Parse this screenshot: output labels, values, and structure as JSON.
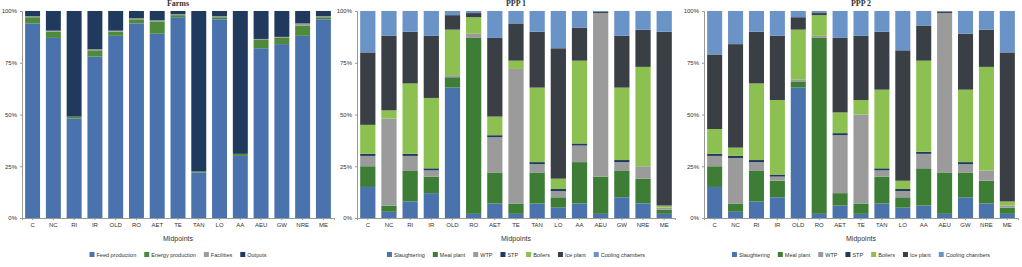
{
  "chart_data": [
    {
      "type": "bar",
      "title": "Farms",
      "x_label": "Midpoints",
      "stacked": true,
      "categories": [
        "C",
        "NC",
        "RI",
        "IR",
        "OLD",
        "RO",
        "AET",
        "TE",
        "TAN",
        "LO",
        "AA",
        "AEU",
        "GW",
        "NRE",
        "ME"
      ],
      "ylim": [
        0,
        100
      ],
      "yticks": [
        {
          "value": 0,
          "label": "0%"
        },
        {
          "value": 25,
          "label": "25%"
        },
        {
          "value": 50,
          "label": "50%"
        },
        {
          "value": 75,
          "label": "75%"
        },
        {
          "value": 100,
          "label": "100%"
        }
      ],
      "series": [
        {
          "name": "Feed production",
          "color": "#4a72ad",
          "values": [
            94,
            87,
            48,
            78,
            88,
            94,
            89,
            97,
            22,
            96,
            30,
            82,
            84,
            88,
            96
          ]
        },
        {
          "name": "Energy production",
          "color": "#4f8a3c",
          "values": [
            3,
            3,
            1,
            3,
            2,
            2,
            6,
            1,
            0.5,
            1,
            1,
            4,
            3,
            5,
            1
          ]
        },
        {
          "name": "Facilities",
          "color": "#9b9b9b",
          "values": [
            0.5,
            0.5,
            0,
            0.5,
            0.5,
            0.5,
            0.5,
            0.5,
            0,
            0.5,
            0,
            0.5,
            0.5,
            1,
            0.5
          ]
        },
        {
          "name": "Outputs",
          "color": "#1f3a5c",
          "values": [
            2.5,
            9.5,
            51,
            18.5,
            9.5,
            3.5,
            4.5,
            1.5,
            77.5,
            2.5,
            69,
            13.5,
            12.5,
            6,
            2.5
          ]
        }
      ]
    },
    {
      "type": "bar",
      "title": "PPP 1",
      "x_label": "Midpoints",
      "stacked": true,
      "categories": [
        "C",
        "NC",
        "RI",
        "IR",
        "OLD",
        "RO",
        "AET",
        "TE",
        "TAN",
        "LO",
        "AA",
        "AEU",
        "GW",
        "NRE",
        "ME"
      ],
      "ylim": [
        0,
        100
      ],
      "yticks": [
        {
          "value": 0,
          "label": "0%"
        },
        {
          "value": 25,
          "label": "25%"
        },
        {
          "value": 50,
          "label": "50%"
        },
        {
          "value": 75,
          "label": "75%"
        },
        {
          "value": 100,
          "label": "100%"
        }
      ],
      "series": [
        {
          "name": "Slaughtering",
          "color": "#4a72ad",
          "values": [
            15,
            3,
            8,
            12,
            63,
            2,
            7,
            2,
            7,
            5,
            7,
            2,
            10,
            7,
            2
          ]
        },
        {
          "name": "Meal plant",
          "color": "#3e7d36",
          "values": [
            10,
            3,
            15,
            8,
            5,
            85,
            15,
            5,
            15,
            5,
            20,
            18,
            13,
            12,
            2
          ]
        },
        {
          "name": "WTP",
          "color": "#9b9b9b",
          "values": [
            5,
            42,
            7,
            3,
            1,
            2,
            17,
            65,
            4,
            3,
            8,
            79,
            4,
            6,
            1
          ]
        },
        {
          "name": "STP",
          "color": "#1f3a5c",
          "values": [
            1,
            0,
            1,
            1,
            0,
            0,
            1,
            0,
            1,
            1,
            1,
            0,
            1,
            0,
            0
          ]
        },
        {
          "name": "Boilers",
          "color": "#8cc152",
          "values": [
            14,
            4,
            34,
            34,
            22,
            8,
            9,
            4,
            36,
            5,
            40,
            0,
            35,
            48,
            1
          ]
        },
        {
          "name": "Ice plant",
          "color": "#3a3f45",
          "values": [
            35,
            36,
            25,
            30,
            7,
            2,
            38,
            18,
            27,
            63,
            16,
            0.5,
            25,
            18,
            84
          ]
        },
        {
          "name": "Cooling chambers",
          "color": "#6a93c8",
          "values": [
            20,
            12,
            10,
            12,
            2,
            1,
            13,
            6,
            10,
            18,
            8,
            0.5,
            12,
            9,
            10
          ]
        }
      ]
    },
    {
      "type": "bar",
      "title": "PPP 2",
      "x_label": "Midpoints",
      "stacked": true,
      "categories": [
        "C",
        "NC",
        "RI",
        "IR",
        "OLD",
        "RO",
        "AET",
        "TE",
        "TAN",
        "LO",
        "AA",
        "AEU",
        "GW",
        "NRE",
        "ME"
      ],
      "ylim": [
        0,
        100
      ],
      "yticks": [
        {
          "value": 0,
          "label": "0%"
        },
        {
          "value": 25,
          "label": "25%"
        },
        {
          "value": 50,
          "label": "50%"
        },
        {
          "value": 75,
          "label": "75%"
        },
        {
          "value": 100,
          "label": "100%"
        }
      ],
      "series": [
        {
          "name": "Slaughtering",
          "color": "#4a72ad",
          "values": [
            15,
            3,
            8,
            10,
            63,
            2,
            6,
            2,
            7,
            5,
            6,
            2,
            10,
            7,
            2
          ]
        },
        {
          "name": "Meal plant",
          "color": "#3e7d36",
          "values": [
            10,
            4,
            15,
            8,
            3,
            85,
            6,
            5,
            13,
            5,
            18,
            20,
            12,
            11,
            3
          ]
        },
        {
          "name": "WTP",
          "color": "#9b9b9b",
          "values": [
            5,
            22,
            4,
            2,
            1,
            1,
            28,
            43,
            3,
            3,
            7,
            77,
            4,
            5,
            1
          ]
        },
        {
          "name": "STP",
          "color": "#1f3a5c",
          "values": [
            1,
            1,
            1,
            1,
            0,
            0,
            1,
            0,
            1,
            1,
            1,
            0,
            1,
            0,
            0
          ]
        },
        {
          "name": "Boilers",
          "color": "#8cc152",
          "values": [
            12,
            4,
            37,
            36,
            24,
            10,
            10,
            7,
            38,
            4,
            44,
            0,
            35,
            50,
            2
          ]
        },
        {
          "name": "Ice plant",
          "color": "#3a3f45",
          "values": [
            36,
            50,
            25,
            31,
            6,
            1,
            36,
            31,
            28,
            63,
            17,
            0.5,
            27,
            18,
            72
          ]
        },
        {
          "name": "Cooling chambers",
          "color": "#6a93c8",
          "values": [
            21,
            16,
            10,
            12,
            3,
            1,
            13,
            12,
            10,
            19,
            7,
            0.5,
            11,
            9,
            20
          ]
        }
      ]
    }
  ]
}
